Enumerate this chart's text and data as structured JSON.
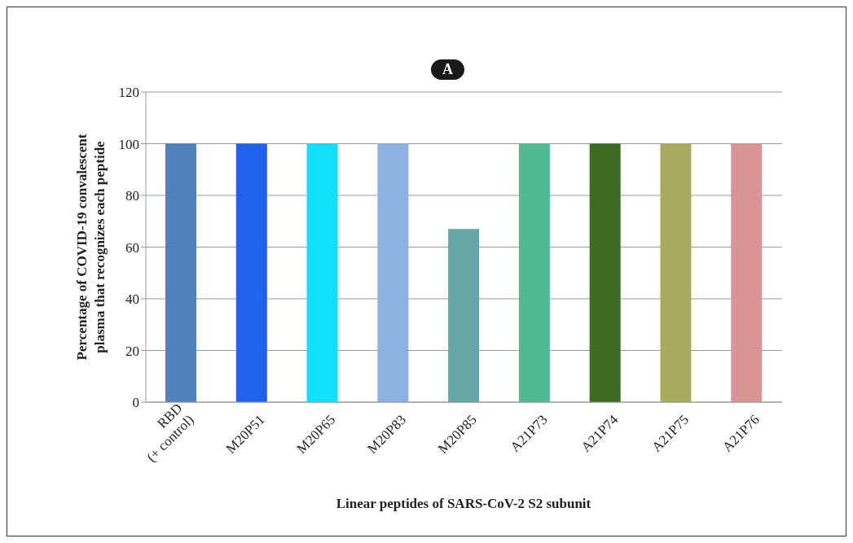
{
  "chart_data": {
    "type": "bar",
    "title": "A",
    "xlabel": "Linear peptides of SARS-CoV-2 S2 subunit",
    "ylabel": "Percentage of COVID-19 convalescent\nplasma that recognizes each peptide",
    "categories": [
      "RBD\n(+ control)",
      "M20P51",
      "M20P65",
      "M20P83",
      "M20P85",
      "A21P73",
      "A21P74",
      "A21P75",
      "A21P76"
    ],
    "values": [
      100,
      100,
      100,
      100,
      67,
      100,
      100,
      100,
      100
    ],
    "colors": [
      "#4f81bd",
      "#1f63ea",
      "#12e0fb",
      "#8db2e0",
      "#66a6a6",
      "#50ba93",
      "#3d6b21",
      "#a9ac5e",
      "#d99594"
    ],
    "ylim": [
      0,
      120
    ],
    "yticks": [
      0,
      20,
      40,
      60,
      80,
      100,
      120
    ],
    "grid": "y"
  }
}
